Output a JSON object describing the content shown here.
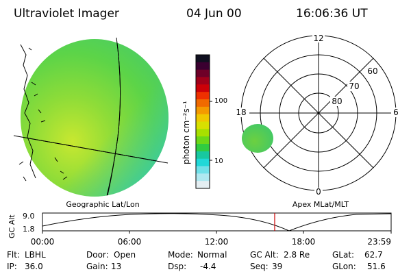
{
  "header": {
    "title": "Ultraviolet Imager",
    "date": "04 Jun 00",
    "time": "16:06:36 UT"
  },
  "left_panel": {
    "caption": "Geographic Lat/Lon"
  },
  "color_bar": {
    "unit_label": "photon cm⁻²s⁻¹",
    "ticks": [
      {
        "label": "100",
        "value": 100
      },
      {
        "label": "10",
        "value": 10
      }
    ],
    "colors": [
      "#101020",
      "#3a0030",
      "#6e0028",
      "#a0001a",
      "#cc0008",
      "#ee3000",
      "#f06a00",
      "#f49a00",
      "#f0c800",
      "#d8e000",
      "#a8e000",
      "#6cd818",
      "#30cc40",
      "#18c8a0",
      "#20d8d8",
      "#70e0e8",
      "#b0e8f0",
      "#e4eef2"
    ]
  },
  "right_panel": {
    "caption": "Apex MLat/MLT",
    "mlt_labels": [
      "12",
      "18",
      "6",
      "0"
    ],
    "mlat_labels": [
      "60",
      "70",
      "80"
    ]
  },
  "timeline": {
    "axis_label": "GC Alt",
    "y_ticks": [
      "9.0",
      "1.8"
    ],
    "x_ticks": [
      "00:00",
      "06:00",
      "12:00",
      "18:00",
      "23:59"
    ],
    "current_time_marker": "16:06"
  },
  "info": {
    "filter": {
      "label": "Flt:",
      "value": "LBHL"
    },
    "ip": {
      "label": "IP:",
      "value": "36.0"
    },
    "door": {
      "label": "Door:",
      "value": "Open"
    },
    "gain": {
      "label": "Gain:",
      "value": "13"
    },
    "mode": {
      "label": "Mode:",
      "value": "Normal"
    },
    "dsp": {
      "label": "Dsp:",
      "value": "-4.4"
    },
    "gc_alt": {
      "label": "GC Alt:",
      "value": "2.8 Re"
    },
    "seq": {
      "label": "Seq:",
      "value": "39"
    },
    "glat": {
      "label": "GLat:",
      "value": "62.7"
    },
    "glon": {
      "label": "GLon:",
      "value": "51.6"
    }
  }
}
